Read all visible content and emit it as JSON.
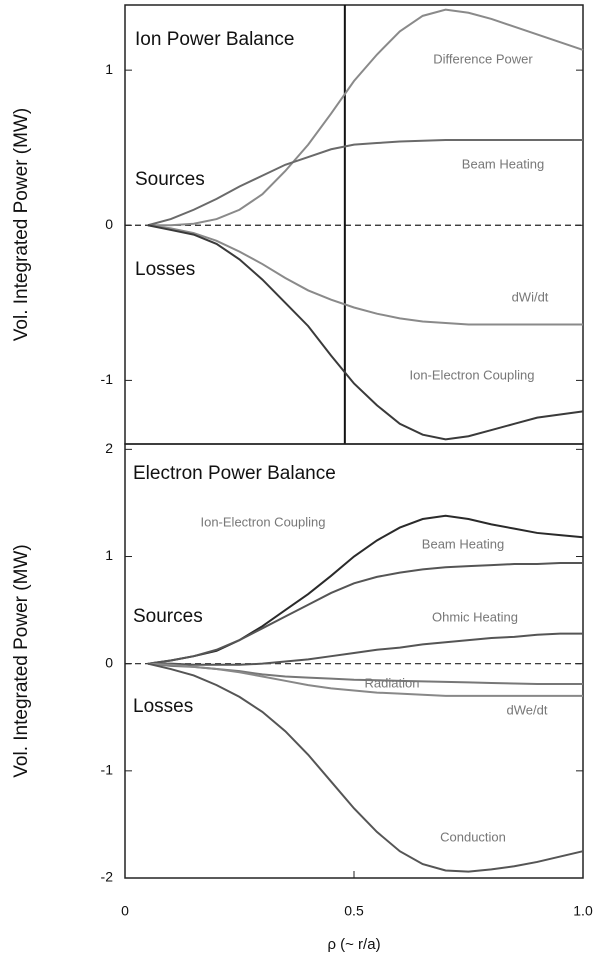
{
  "chart_data": [
    {
      "type": "line",
      "title": "Ion Power Balance",
      "annotations": [
        "Sources",
        "Losses"
      ],
      "ylabel": "Vol. Integrated Power (MW)",
      "xlim": [
        0,
        1
      ],
      "ylim": [
        -1.41,
        1.42
      ],
      "yticks": [
        -1,
        0,
        1
      ],
      "vline": 0.48,
      "x": [
        0.05,
        0.1,
        0.15,
        0.2,
        0.25,
        0.3,
        0.35,
        0.4,
        0.45,
        0.5,
        0.55,
        0.6,
        0.65,
        0.7,
        0.75,
        0.8,
        0.85,
        0.9,
        0.95,
        1.0
      ],
      "series": [
        {
          "name": "Difference Power",
          "color": "#8a8a8a",
          "values": [
            0,
            0,
            0.01,
            0.04,
            0.1,
            0.2,
            0.35,
            0.52,
            0.72,
            0.93,
            1.1,
            1.25,
            1.35,
            1.39,
            1.37,
            1.33,
            1.28,
            1.23,
            1.18,
            1.13
          ]
        },
        {
          "name": "Beam Heating",
          "color": "#6a6a6a",
          "values": [
            0,
            0.04,
            0.1,
            0.17,
            0.25,
            0.32,
            0.39,
            0.44,
            0.49,
            0.52,
            0.53,
            0.54,
            0.545,
            0.55,
            0.55,
            0.55,
            0.55,
            0.55,
            0.55,
            0.55
          ]
        },
        {
          "name": "dWi/dt",
          "color": "#8a8a8a",
          "values": [
            0,
            -0.02,
            -0.05,
            -0.1,
            -0.17,
            -0.25,
            -0.34,
            -0.42,
            -0.48,
            -0.53,
            -0.57,
            -0.6,
            -0.62,
            -0.63,
            -0.64,
            -0.64,
            -0.64,
            -0.64,
            -0.64,
            -0.64
          ]
        },
        {
          "name": "Ion-Electron Coupling",
          "color": "#3a3a3a",
          "values": [
            0,
            -0.03,
            -0.06,
            -0.12,
            -0.22,
            -0.35,
            -0.5,
            -0.65,
            -0.84,
            -1.02,
            -1.16,
            -1.28,
            -1.35,
            -1.38,
            -1.36,
            -1.32,
            -1.28,
            -1.24,
            -1.22,
            -1.2
          ]
        }
      ]
    },
    {
      "type": "line",
      "title": "Electron Power Balance",
      "annotations": [
        "Sources",
        "Losses"
      ],
      "ylabel": "Vol. Integrated Power (MW)",
      "xlabel": "ρ (~ r/a)",
      "xlim": [
        0,
        1
      ],
      "ylim": [
        -2,
        2.05
      ],
      "yticks": [
        -2,
        -1,
        0,
        1,
        2
      ],
      "xticks": [
        0,
        0.5,
        {
          "value": 1,
          "label": "1.0"
        }
      ],
      "x": [
        0.05,
        0.1,
        0.15,
        0.2,
        0.25,
        0.3,
        0.35,
        0.4,
        0.45,
        0.5,
        0.55,
        0.6,
        0.65,
        0.7,
        0.75,
        0.8,
        0.85,
        0.9,
        0.95,
        1.0
      ],
      "series": [
        {
          "name": "Ion-Electron Coupling",
          "color": "#2a2a2a",
          "values": [
            0,
            0.03,
            0.07,
            0.12,
            0.22,
            0.35,
            0.5,
            0.65,
            0.82,
            1.0,
            1.15,
            1.27,
            1.35,
            1.38,
            1.35,
            1.3,
            1.26,
            1.22,
            1.2,
            1.18
          ]
        },
        {
          "name": "Beam Heating",
          "color": "#555555",
          "values": [
            0,
            0.03,
            0.07,
            0.13,
            0.22,
            0.33,
            0.44,
            0.55,
            0.66,
            0.75,
            0.81,
            0.85,
            0.88,
            0.9,
            0.91,
            0.92,
            0.93,
            0.93,
            0.94,
            0.94
          ]
        },
        {
          "name": "Ohmic Heating",
          "color": "#555555",
          "values": [
            0,
            0,
            -0.01,
            -0.01,
            -0.01,
            0,
            0.02,
            0.04,
            0.07,
            0.1,
            0.13,
            0.15,
            0.18,
            0.2,
            0.22,
            0.24,
            0.25,
            0.27,
            0.28,
            0.28
          ]
        },
        {
          "name": "Radiation",
          "color": "#777777",
          "values": [
            0,
            -0.02,
            -0.03,
            -0.05,
            -0.07,
            -0.1,
            -0.12,
            -0.13,
            -0.14,
            -0.15,
            -0.155,
            -0.16,
            -0.165,
            -0.17,
            -0.175,
            -0.18,
            -0.185,
            -0.19,
            -0.19,
            -0.19
          ]
        },
        {
          "name": "dWe/dt",
          "color": "#888888",
          "values": [
            0,
            -0.01,
            -0.03,
            -0.05,
            -0.08,
            -0.12,
            -0.16,
            -0.2,
            -0.23,
            -0.25,
            -0.27,
            -0.28,
            -0.29,
            -0.3,
            -0.3,
            -0.3,
            -0.3,
            -0.3,
            -0.3,
            -0.3
          ]
        },
        {
          "name": "Conduction",
          "color": "#555555",
          "values": [
            0,
            -0.05,
            -0.11,
            -0.2,
            -0.31,
            -0.45,
            -0.63,
            -0.85,
            -1.1,
            -1.35,
            -1.57,
            -1.75,
            -1.87,
            -1.93,
            -1.94,
            -1.92,
            -1.89,
            -1.85,
            -1.8,
            -1.75
          ]
        }
      ]
    }
  ]
}
